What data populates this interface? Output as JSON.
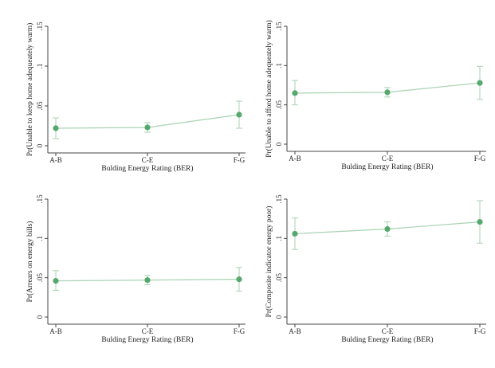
{
  "chart_data": [
    {
      "type": "line",
      "categories": [
        "A-B",
        "C-E",
        "F-G"
      ],
      "values": [
        0.022,
        0.023,
        0.039
      ],
      "ci_low": [
        0.009,
        0.017,
        0.022
      ],
      "ci_high": [
        0.035,
        0.029,
        0.056
      ],
      "xlabel": "Bulding Energy Rating (BER)",
      "ylabel": "Pr(Unable to keep home adequeately warm)",
      "ylim": [
        0,
        0.15
      ],
      "yticks": [
        "0",
        ".05",
        ".1",
        ".15"
      ],
      "grid": false
    },
    {
      "type": "line",
      "categories": [
        "A-B",
        "C-E",
        "F-G"
      ],
      "values": [
        0.065,
        0.066,
        0.078
      ],
      "ci_low": [
        0.05,
        0.06,
        0.057
      ],
      "ci_high": [
        0.081,
        0.072,
        0.099
      ],
      "xlabel": "Bulding Energy Rating (BER)",
      "ylabel": "Pr(Unable to afford home adequeately warm)",
      "ylim": [
        0,
        0.15
      ],
      "yticks": [
        "0",
        ".05",
        ".1",
        ".15"
      ],
      "grid": false
    },
    {
      "type": "line",
      "categories": [
        "A-B",
        "C-E",
        "F-G"
      ],
      "values": [
        0.046,
        0.047,
        0.048
      ],
      "ci_low": [
        0.034,
        0.041,
        0.033
      ],
      "ci_high": [
        0.059,
        0.053,
        0.063
      ],
      "xlabel": "Bulding Energy Rating (BER)",
      "ylabel": "Pr(Arrears on energy bills)",
      "ylim": [
        0,
        0.15
      ],
      "yticks": [
        "0",
        ".05",
        ".1",
        ".15"
      ],
      "grid": false
    },
    {
      "type": "line",
      "categories": [
        "A-B",
        "C-E",
        "F-G"
      ],
      "values": [
        0.106,
        0.112,
        0.121
      ],
      "ci_low": [
        0.086,
        0.103,
        0.094
      ],
      "ci_high": [
        0.126,
        0.121,
        0.148
      ],
      "xlabel": "Bulding Energy Rating (BER)",
      "ylabel": "Pr(Composite indicator energy poor)",
      "ylim": [
        0,
        0.15
      ],
      "yticks": [
        "0",
        ".05",
        ".1",
        ".15"
      ],
      "grid": false
    }
  ],
  "colors": {
    "series": "#56a86c",
    "ci": "#a8d2b3",
    "axis": "#444444"
  }
}
